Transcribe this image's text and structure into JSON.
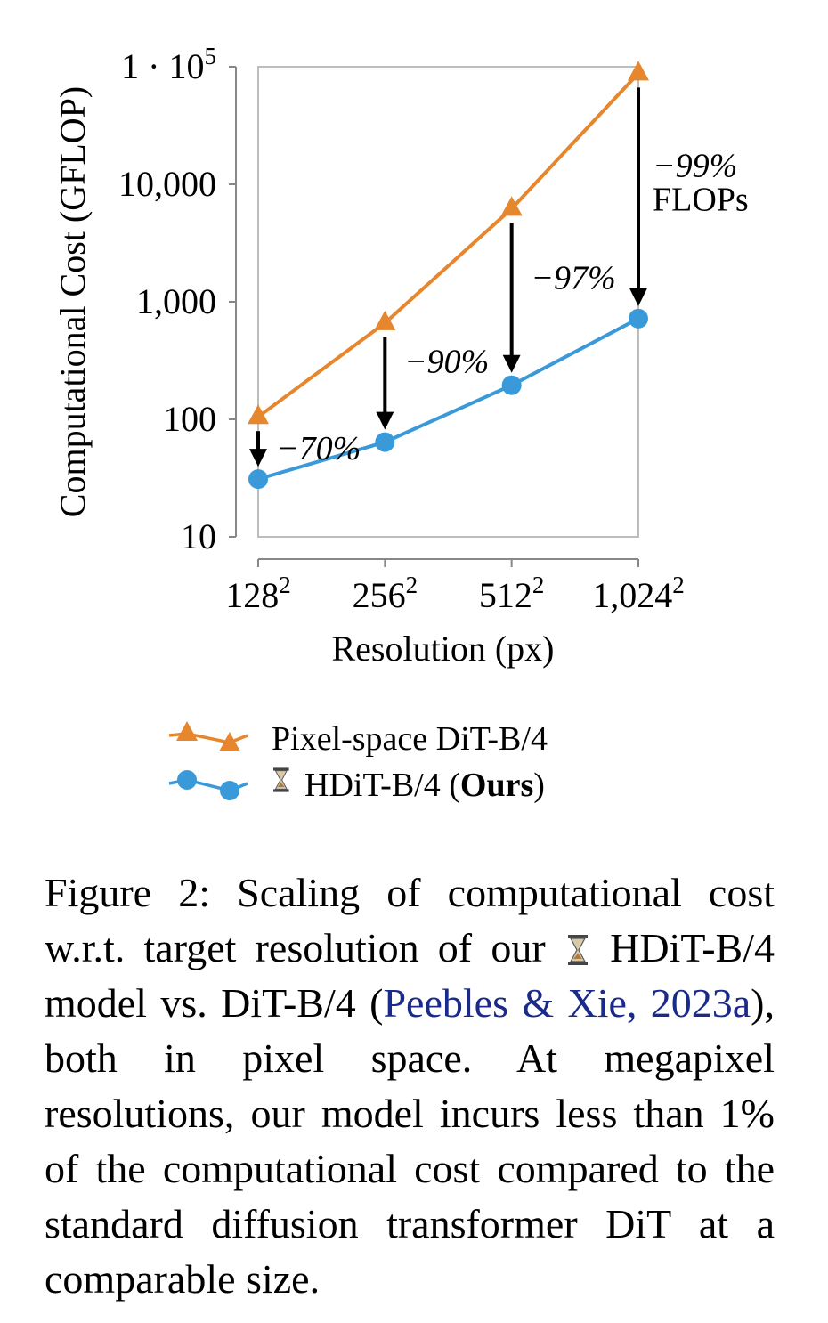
{
  "chart_data": {
    "type": "line",
    "y_scale": "log",
    "ylim": [
      10,
      100000
    ],
    "ylabel": "Computational Cost (GFLOP)",
    "xlabel": "Resolution (px)",
    "y_ticks": [
      {
        "value": 10,
        "label": "10"
      },
      {
        "value": 100,
        "label": "100"
      },
      {
        "value": 1000,
        "label": "1,000"
      },
      {
        "value": 10000,
        "label": "10,000"
      },
      {
        "value": 100000,
        "label": "1 · 10",
        "sup": "5"
      }
    ],
    "categories": [
      {
        "base": "128",
        "sup": "2"
      },
      {
        "base": "256",
        "sup": "2"
      },
      {
        "base": "512",
        "sup": "2"
      },
      {
        "base": "1,024",
        "sup": "2"
      }
    ],
    "series": [
      {
        "name": "Pixel-space DiT-B/4",
        "color": "#e6862d",
        "marker": "triangle",
        "values": [
          105,
          660,
          6200,
          88000
        ]
      },
      {
        "name": "HDiT-B/4",
        "name_bold": "Ours",
        "color": "#3a9ad9",
        "marker": "circle",
        "values": [
          31,
          64,
          195,
          720
        ]
      }
    ],
    "annotations": [
      {
        "index": 0,
        "label": "−70%"
      },
      {
        "index": 1,
        "label": "−90%"
      },
      {
        "index": 2,
        "label": "−97%"
      },
      {
        "index": 3,
        "label": "−99%",
        "label2": "FLOPs"
      }
    ],
    "legend": {
      "position": "bottom"
    },
    "grid": false
  },
  "caption": {
    "figure_label": "Figure 2:",
    "text_a": "Scaling of computational cost w.r.t. target resolution of our",
    "text_b": "HDiT-B/4 model vs. DiT-B/4 (",
    "citation": "Peebles & Xie, 2023a",
    "text_c": "), both in pixel space. At megapixel resolutions, our model incurs less than 1% of the computational cost compared to the standard diffusion transformer DiT at a comparable size."
  }
}
